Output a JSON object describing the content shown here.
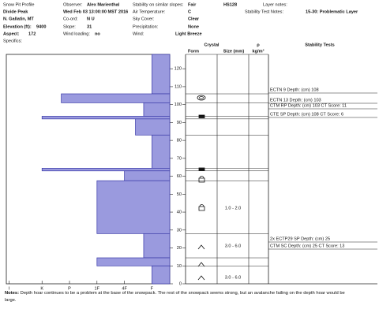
{
  "header": {
    "title": "Snow Pit Profile",
    "location": "Divide Peak",
    "region": "N. Gallatin, MT",
    "observer_label": "Observer:",
    "observer": "Alex Marienthal",
    "date": "Wed Feb 03 13:00:00 MST 2016",
    "coord_label": "Co-ord:",
    "coord": "N U",
    "elevation_label": "Elevation (ft):",
    "elevation": "9400",
    "slope_label": "Slope:",
    "slope": "31",
    "aspect_label": "Aspect:",
    "aspect": "172",
    "wind_loading_label": "Wind loading:",
    "wind_loading": "no",
    "specifics_label": "Specifics:",
    "stability_label": "Stability on similar slopes:",
    "stability": "Fair",
    "hs": "HS128",
    "air_temp_label": "Air Temperature:",
    "air_temp": "C",
    "sky_label": "Sky Cover:",
    "sky": "Clear",
    "precip_label": "Precipitation:",
    "precip": "None",
    "wind_label": "Wind:",
    "wind": "Light Breeze",
    "layer_notes_label": "Layer notes:",
    "test_notes_label": "Stability Test Notes:",
    "test_notes": "15-30: Problematic Layer"
  },
  "columns": {
    "crystal": "Crystal",
    "form": "Form",
    "size": "Size (mm)",
    "rho": "ρ",
    "density": "kg/m³",
    "tests": "Stability Tests"
  },
  "chart_data": {
    "type": "hardness-profile",
    "color": "#9a9ade",
    "edge_color": "#3a3aa8",
    "ylim": [
      0,
      128
    ],
    "yticks": [
      0,
      10,
      20,
      30,
      40,
      50,
      60,
      70,
      80,
      90,
      100,
      110,
      120
    ],
    "xlim": [
      0.35,
      6.3
    ],
    "xticks": [
      {
        "value": 6.2,
        "label": "I"
      },
      {
        "value": 5,
        "label": "K"
      },
      {
        "value": 4,
        "label": "P"
      },
      {
        "value": 3,
        "label": "1F"
      },
      {
        "value": 2,
        "label": "4F"
      },
      {
        "value": 1,
        "label": "F"
      }
    ],
    "layers": [
      {
        "top": 128,
        "bottom": 106,
        "hardness": 1
      },
      {
        "top": 106,
        "bottom": 101,
        "hardness": 4.3
      },
      {
        "top": 101,
        "bottom": 93.5,
        "hardness": 1.3
      },
      {
        "top": 93.5,
        "bottom": 92,
        "hardness": 5
      },
      {
        "top": 92,
        "bottom": 83,
        "hardness": 1.6
      },
      {
        "top": 83,
        "bottom": 64.5,
        "hardness": 1
      },
      {
        "top": 64.5,
        "bottom": 63,
        "hardness": 5
      },
      {
        "top": 63,
        "bottom": 57.5,
        "hardness": 2
      },
      {
        "top": 57.5,
        "bottom": 28,
        "hardness": 3
      },
      {
        "top": 28,
        "bottom": 14.5,
        "hardness": 1.3
      },
      {
        "top": 14.5,
        "bottom": 10,
        "hardness": 3
      },
      {
        "top": 10,
        "bottom": 0,
        "hardness": 1
      }
    ]
  },
  "grain_sizes": [
    "1.0 - 2.0",
    "3.0 - 6.0",
    "3.0 - 6.0"
  ],
  "stability_tests": [
    "ECTN 9 Depth: (cm) 108",
    "ECTN 13 Depth: (cm) 103",
    "CTM RP Depth: (cm) 103 CT Score: 11",
    "CTE SP Depth: (cm) 108 CT Score: 6",
    "2x ECTP29 SP Depth: (cm) 25",
    "CTM SC Depth: (cm) 25 CT Score: 13"
  ],
  "notes_label": "Notes:",
  "notes": "Depth hoar continues to be a problem at the base of the snowpack. The rest of the snowpack seems strong, but an avalanche failing on the depth hoar would be large."
}
